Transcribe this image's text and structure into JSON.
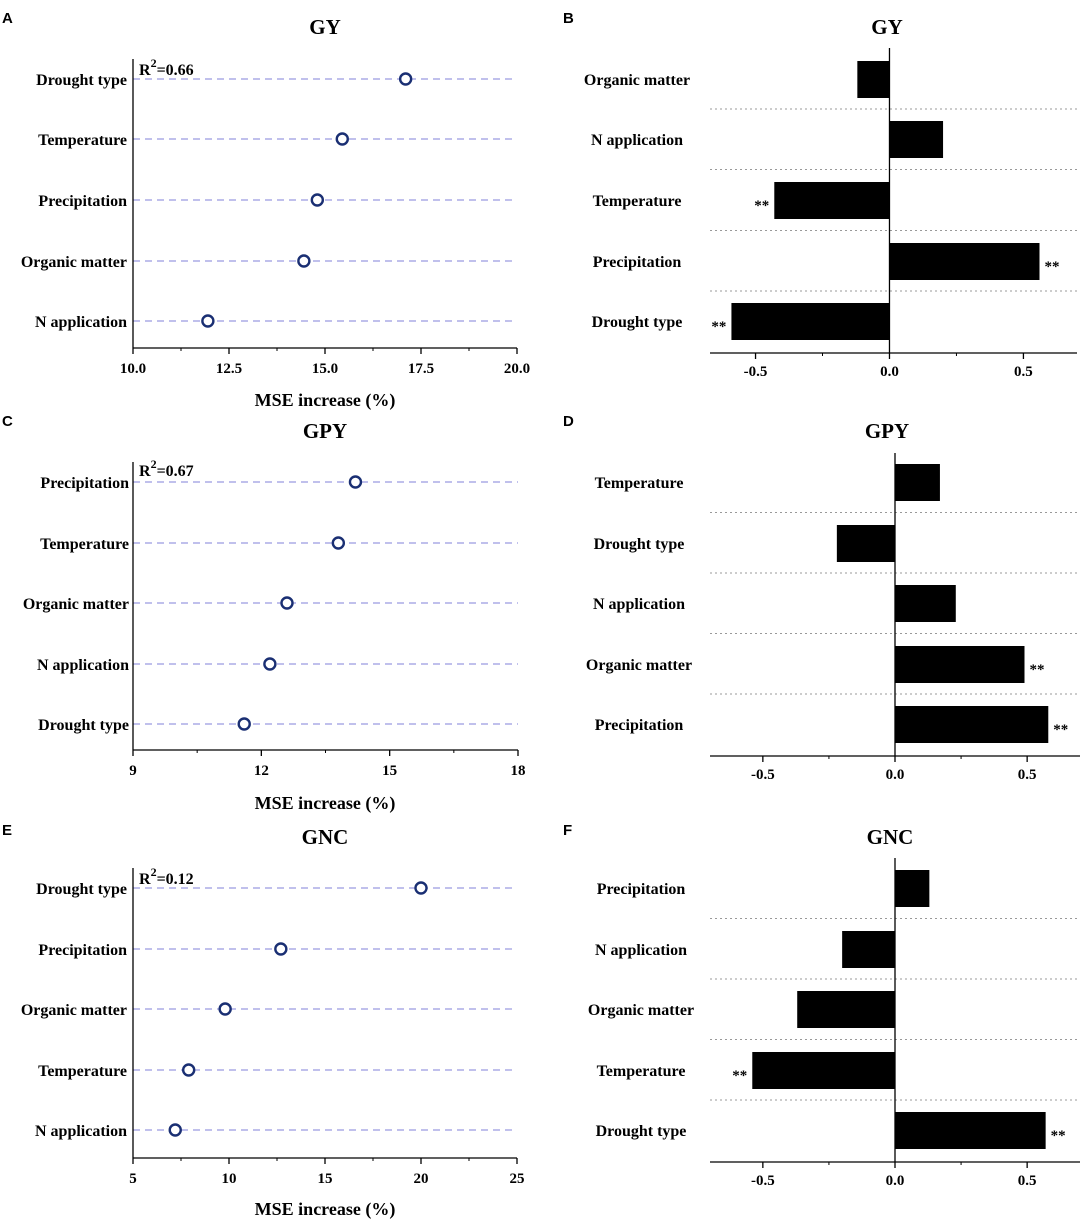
{
  "chart_data": [
    {
      "panel": "A",
      "type": "scatter",
      "title": "GY",
      "xlabel": "MSE increase (%)",
      "r2_label": "=0.66",
      "xlim": [
        10.0,
        20.0
      ],
      "xticks": [
        "10.0",
        "12.5",
        "15.0",
        "17.5",
        "20.0"
      ],
      "categories": [
        "Drought type",
        "Temperature",
        "Precipitation",
        "Organic matter",
        "N application"
      ],
      "values": [
        17.1,
        15.45,
        14.8,
        14.45,
        11.95
      ]
    },
    {
      "panel": "B",
      "type": "bar",
      "title": "GY",
      "xlim": [
        -0.67,
        0.7
      ],
      "xticks": [
        "-0.5",
        "0.0",
        "0.5"
      ],
      "categories": [
        "Organic matter",
        "N application",
        "Temperature",
        "Precipitation",
        "Drought type"
      ],
      "values": [
        -0.12,
        0.2,
        -0.43,
        0.56,
        -0.59
      ],
      "significance": [
        "",
        "",
        "**",
        "**",
        "**"
      ]
    },
    {
      "panel": "C",
      "type": "scatter",
      "title": "GPY",
      "xlabel": "MSE increase (%)",
      "r2_label": "=0.67",
      "xlim": [
        9,
        18
      ],
      "xticks": [
        "9",
        "12",
        "15",
        "18"
      ],
      "categories": [
        "Precipitation",
        "Temperature",
        "Organic matter",
        "N application",
        "Drought type"
      ],
      "values": [
        14.2,
        13.8,
        12.6,
        12.2,
        11.6
      ]
    },
    {
      "panel": "D",
      "type": "bar",
      "title": "GPY",
      "xlim": [
        -0.7,
        0.7
      ],
      "xticks": [
        "-0.5",
        "0.0",
        "0.5"
      ],
      "categories": [
        "Temperature",
        "Drought type",
        "N application",
        "Organic matter",
        "Precipitation"
      ],
      "values": [
        0.17,
        -0.22,
        0.23,
        0.49,
        0.58
      ],
      "significance": [
        "",
        "",
        "",
        "**",
        "**"
      ]
    },
    {
      "panel": "E",
      "type": "scatter",
      "title": "GNC",
      "xlabel": "MSE increase (%)",
      "r2_label": "=0.12",
      "xlim": [
        5,
        25
      ],
      "xticks": [
        "5",
        "10",
        "15",
        "20",
        "25"
      ],
      "categories": [
        "Drought type",
        "Precipitation",
        "Organic matter",
        "Temperature",
        "N application"
      ],
      "values": [
        20.0,
        12.7,
        9.8,
        7.9,
        7.2
      ]
    },
    {
      "panel": "F",
      "type": "bar",
      "title": "GNC",
      "xlim": [
        -0.7,
        0.7
      ],
      "xticks": [
        "-0.5",
        "0.0",
        "0.5"
      ],
      "categories": [
        "Precipitation",
        "N application",
        "Organic matter",
        "Temperature",
        "Drought type"
      ],
      "values": [
        0.13,
        -0.2,
        -0.37,
        -0.54,
        0.57
      ],
      "significance": [
        "",
        "",
        "",
        "**",
        "**"
      ]
    }
  ],
  "colors": {
    "dot_stroke": "#1a2f73",
    "grid_dash": "#9a9ae0",
    "bar_fill": "#000000",
    "axis": "#000000",
    "separator": "#999999"
  }
}
